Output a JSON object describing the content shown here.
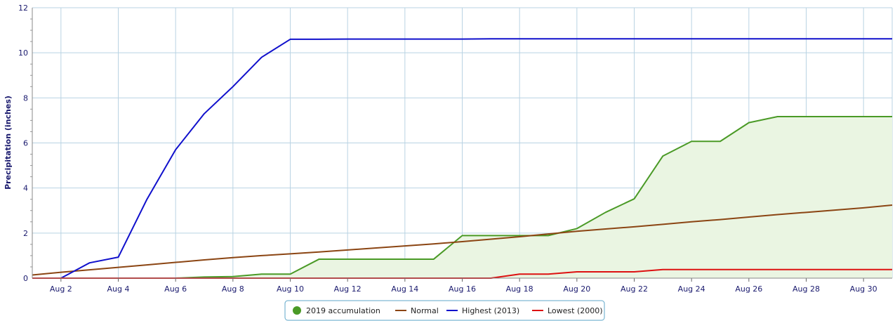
{
  "chart_data": {
    "type": "line",
    "title": "",
    "ylabel": "Precipitation (inches)",
    "xlabel": "",
    "x_days": [
      1,
      2,
      3,
      4,
      5,
      6,
      7,
      8,
      9,
      10,
      11,
      12,
      13,
      14,
      15,
      16,
      17,
      18,
      19,
      20,
      21,
      22,
      23,
      24,
      25,
      26,
      27,
      28,
      29,
      30,
      31
    ],
    "ylim": [
      0,
      12
    ],
    "xlim": [
      1,
      31
    ],
    "y_ticks": [
      0,
      2,
      4,
      6,
      8,
      10,
      12
    ],
    "x_ticks": [
      {
        "day": 2,
        "label": "Aug 2"
      },
      {
        "day": 4,
        "label": "Aug 4"
      },
      {
        "day": 6,
        "label": "Aug 6"
      },
      {
        "day": 8,
        "label": "Aug 8"
      },
      {
        "day": 10,
        "label": "Aug 10"
      },
      {
        "day": 12,
        "label": "Aug 12"
      },
      {
        "day": 14,
        "label": "Aug 14"
      },
      {
        "day": 16,
        "label": "Aug 16"
      },
      {
        "day": 18,
        "label": "Aug 18"
      },
      {
        "day": 20,
        "label": "Aug 20"
      },
      {
        "day": 22,
        "label": "Aug 22"
      },
      {
        "day": 24,
        "label": "Aug 24"
      },
      {
        "day": 26,
        "label": "Aug 26"
      },
      {
        "day": 28,
        "label": "Aug 28"
      },
      {
        "day": 30,
        "label": "Aug 30"
      }
    ],
    "grid": true,
    "legend_position": "bottom-center",
    "series": [
      {
        "name": "2019 accumulation",
        "color": "#4a9a26",
        "fill": "#eaf5e2",
        "area": true,
        "values": [
          0,
          0,
          0,
          0,
          0,
          0,
          0.05,
          0.07,
          0.18,
          0.18,
          0.84,
          0.84,
          0.84,
          0.84,
          0.84,
          1.89,
          1.89,
          1.89,
          1.89,
          2.2,
          2.92,
          3.52,
          5.42,
          6.07,
          6.07,
          6.9,
          7.17,
          7.17,
          7.17,
          7.17,
          7.17
        ]
      },
      {
        "name": "Normal",
        "color": "#8b4513",
        "values": [
          0.14,
          0.26,
          0.37,
          0.48,
          0.59,
          0.7,
          0.81,
          0.91,
          1.0,
          1.08,
          1.16,
          1.25,
          1.34,
          1.43,
          1.52,
          1.62,
          1.73,
          1.84,
          1.96,
          2.08,
          2.18,
          2.28,
          2.39,
          2.5,
          2.6,
          2.71,
          2.82,
          2.92,
          3.02,
          3.12,
          3.24
        ]
      },
      {
        "name": "Highest (2013)",
        "color": "#1010cc",
        "values": [
          0,
          0,
          0.68,
          0.93,
          3.5,
          5.7,
          7.3,
          8.5,
          9.8,
          10.6,
          10.6,
          10.61,
          10.61,
          10.61,
          10.61,
          10.61,
          10.62,
          10.62,
          10.62,
          10.62,
          10.62,
          10.62,
          10.62,
          10.62,
          10.62,
          10.62,
          10.62,
          10.62,
          10.62,
          10.62,
          10.62
        ]
      },
      {
        "name": "Lowest (2000)",
        "color": "#dd1111",
        "values": [
          0,
          0,
          0,
          0,
          0,
          0,
          0,
          0,
          0,
          0,
          0,
          0,
          0,
          0,
          0,
          0,
          0,
          0.18,
          0.18,
          0.28,
          0.28,
          0.28,
          0.38,
          0.38,
          0.38,
          0.38,
          0.38,
          0.38,
          0.38,
          0.38,
          0.38
        ]
      }
    ]
  }
}
